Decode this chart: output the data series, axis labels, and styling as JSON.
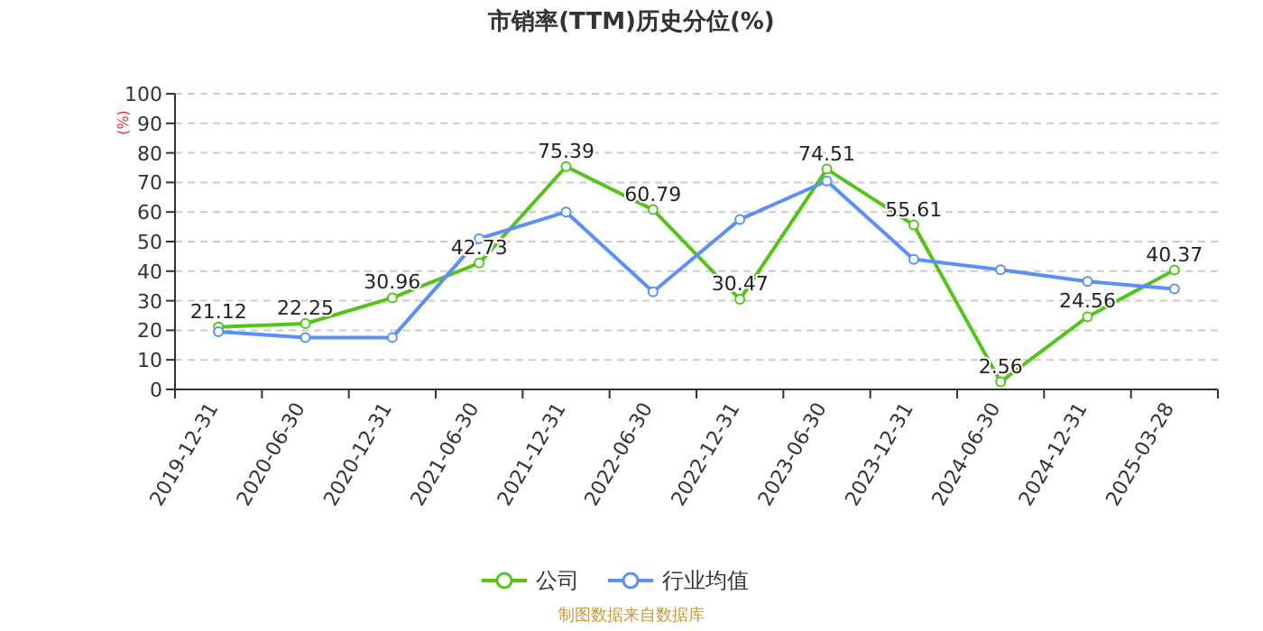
{
  "chart_data": {
    "type": "line",
    "title": "市销率(TTM)历史分位(%)",
    "ylabel": "(%)",
    "categories": [
      "2019-12-31",
      "2020-06-30",
      "2020-12-31",
      "2021-06-30",
      "2021-12-31",
      "2022-06-30",
      "2022-12-31",
      "2023-06-30",
      "2023-12-31",
      "2024-06-30",
      "2024-12-31",
      "2025-03-28"
    ],
    "series": [
      {
        "name": "公司",
        "color": "#52c41a",
        "values": [
          21.12,
          22.25,
          30.96,
          42.73,
          75.39,
          60.79,
          30.47,
          74.51,
          55.61,
          2.56,
          24.56,
          40.37
        ],
        "value_labels": [
          "21.12",
          "22.25",
          "30.96",
          "42.73",
          "75.39",
          "60.79",
          "30.47",
          "74.51",
          "55.61",
          "2.56",
          "24.56",
          "40.37"
        ]
      },
      {
        "name": "行业均值",
        "color": "#5b8ff9",
        "values": [
          19.5,
          17.5,
          17.5,
          51,
          60,
          33,
          57.5,
          70.5,
          44,
          40.5,
          36.5,
          34
        ]
      }
    ],
    "ylim": [
      0,
      100
    ],
    "yticks": [
      0,
      10,
      20,
      30,
      40,
      50,
      60,
      70,
      80,
      90,
      100
    ],
    "grid": "y",
    "legend": "bottom",
    "marker": "circle",
    "line_style": "solid",
    "annotations": [
      "制图数据来自数据库"
    ]
  }
}
